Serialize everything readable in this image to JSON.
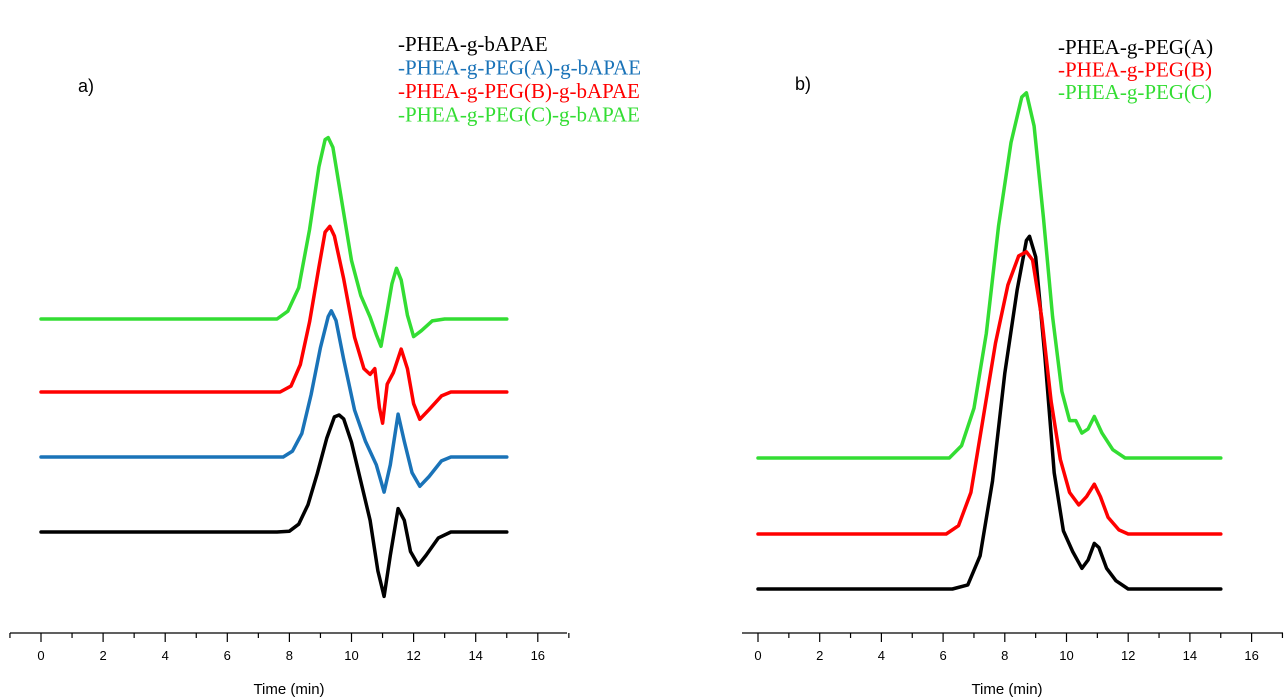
{
  "chart_data": [
    {
      "type": "line",
      "panel_label": "a)",
      "title": "",
      "xlabel": "Time (min)",
      "ylabel": "",
      "xlim": [
        -1,
        17
      ],
      "xticks": [
        0,
        2,
        4,
        6,
        8,
        10,
        12,
        14,
        16
      ],
      "grid": false,
      "legend_position": "top-right",
      "series": [
        {
          "name": "-PHEA-g-bAPAE",
          "color": "#000000",
          "points": [
            [
              0,
              0
            ],
            [
              7.6,
              0
            ],
            [
              8,
              0.02
            ],
            [
              8.3,
              0.2
            ],
            [
              8.6,
              0.7
            ],
            [
              8.9,
              1.5
            ],
            [
              9.2,
              2.4
            ],
            [
              9.45,
              2.95
            ],
            [
              9.6,
              3.0
            ],
            [
              9.75,
              2.9
            ],
            [
              10.0,
              2.3
            ],
            [
              10.3,
              1.3
            ],
            [
              10.6,
              0.3
            ],
            [
              10.85,
              -1.0
            ],
            [
              11.05,
              -1.65
            ],
            [
              11.25,
              -0.6
            ],
            [
              11.5,
              0.6
            ],
            [
              11.7,
              0.3
            ],
            [
              11.9,
              -0.5
            ],
            [
              12.15,
              -0.85
            ],
            [
              12.4,
              -0.6
            ],
            [
              12.8,
              -0.15
            ],
            [
              13.2,
              0
            ],
            [
              15,
              0
            ]
          ]
        },
        {
          "name": "-PHEA-g-PEG(A)-g-bAPAE",
          "color": "#1a73b8",
          "points": [
            [
              0,
              0
            ],
            [
              7.8,
              0
            ],
            [
              8.1,
              0.15
            ],
            [
              8.4,
              0.6
            ],
            [
              8.7,
              1.6
            ],
            [
              9.0,
              2.8
            ],
            [
              9.25,
              3.6
            ],
            [
              9.35,
              3.75
            ],
            [
              9.5,
              3.5
            ],
            [
              9.75,
              2.5
            ],
            [
              10.1,
              1.2
            ],
            [
              10.45,
              0.4
            ],
            [
              10.8,
              -0.2
            ],
            [
              11.05,
              -0.9
            ],
            [
              11.25,
              -0.2
            ],
            [
              11.5,
              1.1
            ],
            [
              11.7,
              0.4
            ],
            [
              11.95,
              -0.4
            ],
            [
              12.2,
              -0.75
            ],
            [
              12.5,
              -0.5
            ],
            [
              12.9,
              -0.1
            ],
            [
              13.2,
              0
            ],
            [
              15,
              0
            ]
          ]
        },
        {
          "name": "-PHEA-g-PEG(B)-g-bAPAE",
          "color": "#ff0000",
          "points": [
            [
              0,
              0
            ],
            [
              7.7,
              0
            ],
            [
              8.05,
              0.15
            ],
            [
              8.35,
              0.7
            ],
            [
              8.65,
              1.8
            ],
            [
              8.95,
              3.2
            ],
            [
              9.15,
              4.1
            ],
            [
              9.3,
              4.25
            ],
            [
              9.45,
              4.0
            ],
            [
              9.75,
              2.9
            ],
            [
              10.1,
              1.4
            ],
            [
              10.4,
              0.6
            ],
            [
              10.6,
              0.45
            ],
            [
              10.75,
              0.6
            ],
            [
              10.9,
              -0.4
            ],
            [
              11.0,
              -0.8
            ],
            [
              11.15,
              0.2
            ],
            [
              11.35,
              0.5
            ],
            [
              11.6,
              1.1
            ],
            [
              11.8,
              0.6
            ],
            [
              12.0,
              -0.3
            ],
            [
              12.2,
              -0.7
            ],
            [
              12.5,
              -0.45
            ],
            [
              12.9,
              -0.1
            ],
            [
              13.2,
              0
            ],
            [
              15,
              0
            ]
          ]
        },
        {
          "name": "-PHEA-g-PEG(C)-g-bAPAE",
          "color": "#33dd33",
          "points": [
            [
              0,
              0
            ],
            [
              7.6,
              0
            ],
            [
              7.95,
              0.2
            ],
            [
              8.3,
              0.8
            ],
            [
              8.65,
              2.3
            ],
            [
              8.95,
              3.9
            ],
            [
              9.15,
              4.6
            ],
            [
              9.25,
              4.65
            ],
            [
              9.4,
              4.4
            ],
            [
              9.65,
              3.2
            ],
            [
              10.0,
              1.5
            ],
            [
              10.3,
              0.6
            ],
            [
              10.6,
              0.05
            ],
            [
              10.8,
              -0.4
            ],
            [
              10.95,
              -0.7
            ],
            [
              11.15,
              0.2
            ],
            [
              11.3,
              0.9
            ],
            [
              11.45,
              1.3
            ],
            [
              11.6,
              1.0
            ],
            [
              11.8,
              0.1
            ],
            [
              12.0,
              -0.45
            ],
            [
              12.25,
              -0.3
            ],
            [
              12.6,
              -0.05
            ],
            [
              13.0,
              0
            ],
            [
              15,
              0
            ]
          ]
        }
      ]
    },
    {
      "type": "line",
      "panel_label": "b)",
      "title": "",
      "xlabel": "Time (min)",
      "ylabel": "",
      "xlim": [
        -0.5,
        17
      ],
      "xticks": [
        0,
        2,
        4,
        6,
        8,
        10,
        12,
        14,
        16
      ],
      "grid": false,
      "legend_position": "top-right",
      "series": [
        {
          "name": "-PHEA-g-PEG(A)",
          "color": "#000000",
          "points": [
            [
              0,
              0
            ],
            [
              6.3,
              0
            ],
            [
              6.8,
              0.05
            ],
            [
              7.2,
              0.4
            ],
            [
              7.6,
              1.3
            ],
            [
              8.0,
              2.6
            ],
            [
              8.4,
              3.6
            ],
            [
              8.7,
              4.2
            ],
            [
              8.8,
              4.25
            ],
            [
              9.0,
              4.0
            ],
            [
              9.3,
              2.8
            ],
            [
              9.6,
              1.4
            ],
            [
              9.9,
              0.7
            ],
            [
              10.2,
              0.45
            ],
            [
              10.5,
              0.25
            ],
            [
              10.7,
              0.35
            ],
            [
              10.9,
              0.55
            ],
            [
              11.05,
              0.5
            ],
            [
              11.3,
              0.25
            ],
            [
              11.6,
              0.1
            ],
            [
              12.0,
              0
            ],
            [
              15,
              0
            ]
          ]
        },
        {
          "name": "-PHEA-g-PEG(B)",
          "color": "#ff0000",
          "points": [
            [
              0,
              0
            ],
            [
              6.1,
              0
            ],
            [
              6.5,
              0.1
            ],
            [
              6.9,
              0.5
            ],
            [
              7.3,
              1.4
            ],
            [
              7.7,
              2.3
            ],
            [
              8.1,
              3.0
            ],
            [
              8.45,
              3.35
            ],
            [
              8.7,
              3.4
            ],
            [
              8.9,
              3.3
            ],
            [
              9.2,
              2.6
            ],
            [
              9.5,
              1.6
            ],
            [
              9.8,
              0.9
            ],
            [
              10.1,
              0.5
            ],
            [
              10.4,
              0.35
            ],
            [
              10.65,
              0.45
            ],
            [
              10.9,
              0.6
            ],
            [
              11.1,
              0.45
            ],
            [
              11.35,
              0.2
            ],
            [
              11.7,
              0.05
            ],
            [
              12.0,
              0
            ],
            [
              15,
              0
            ]
          ]
        },
        {
          "name": "-PHEA-g-PEG(C)",
          "color": "#33dd33",
          "points": [
            [
              0,
              0
            ],
            [
              6.2,
              0
            ],
            [
              6.6,
              0.15
            ],
            [
              7.0,
              0.6
            ],
            [
              7.4,
              1.5
            ],
            [
              7.8,
              2.8
            ],
            [
              8.2,
              3.8
            ],
            [
              8.55,
              4.35
            ],
            [
              8.7,
              4.4
            ],
            [
              8.95,
              4.0
            ],
            [
              9.25,
              2.9
            ],
            [
              9.55,
              1.7
            ],
            [
              9.85,
              0.8
            ],
            [
              10.1,
              0.45
            ],
            [
              10.3,
              0.45
            ],
            [
              10.5,
              0.3
            ],
            [
              10.7,
              0.35
            ],
            [
              10.9,
              0.5
            ],
            [
              11.15,
              0.3
            ],
            [
              11.5,
              0.1
            ],
            [
              11.9,
              0
            ],
            [
              15,
              0
            ]
          ]
        }
      ]
    }
  ]
}
